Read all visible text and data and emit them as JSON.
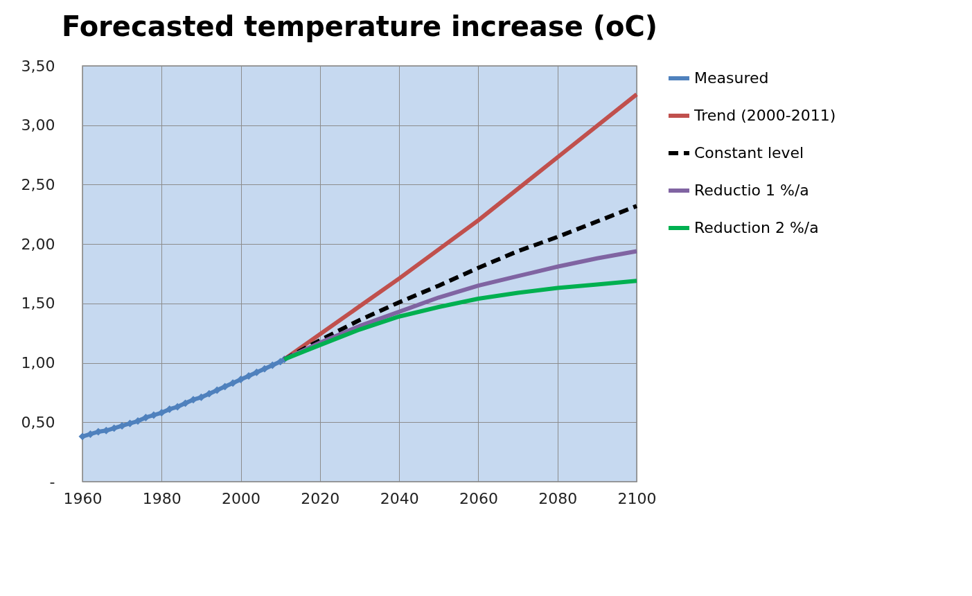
{
  "chart_data": {
    "type": "line",
    "title": "Forecasted temperature increase (oC)",
    "xlim": [
      1960,
      2100
    ],
    "xticks": [
      1960,
      1980,
      2000,
      2020,
      2040,
      2060,
      2080,
      2100
    ],
    "ylim": [
      0,
      3.5
    ],
    "yticks": [
      {
        "value": 0,
        "label": "-"
      },
      {
        "value": 0.5,
        "label": "0,50"
      },
      {
        "value": 1,
        "label": "1,00"
      },
      {
        "value": 1.5,
        "label": "1,50"
      },
      {
        "value": 2,
        "label": "2,00"
      },
      {
        "value": 2.5,
        "label": "2,50"
      },
      {
        "value": 3,
        "label": "3,00"
      },
      {
        "value": 3.5,
        "label": "3,50"
      }
    ],
    "grid": true,
    "legend": "right",
    "series": [
      {
        "name": "Measured",
        "color": "#4f81bd",
        "marker": "diamond",
        "line_style": "solid",
        "x": [
          1960,
          1962,
          1964,
          1966,
          1968,
          1970,
          1972,
          1974,
          1976,
          1978,
          1980,
          1982,
          1984,
          1986,
          1988,
          1990,
          1992,
          1994,
          1996,
          1998,
          2000,
          2002,
          2004,
          2006,
          2008,
          2010,
          2011
        ],
        "values": [
          0.38,
          0.4,
          0.42,
          0.43,
          0.45,
          0.47,
          0.49,
          0.51,
          0.54,
          0.56,
          0.58,
          0.61,
          0.63,
          0.66,
          0.69,
          0.71,
          0.74,
          0.77,
          0.8,
          0.83,
          0.86,
          0.89,
          0.92,
          0.95,
          0.98,
          1.01,
          1.03
        ]
      },
      {
        "name": "Trend (2000-2011)",
        "color": "#c0504d",
        "marker": "none",
        "line_style": "solid",
        "x": [
          2011,
          2040,
          2060,
          2080,
          2100
        ],
        "values": [
          1.03,
          1.71,
          2.2,
          2.73,
          3.26
        ]
      },
      {
        "name": "Constant level",
        "color": "#000000",
        "marker": "none",
        "line_style": "dashed",
        "x": [
          2011,
          2020,
          2030,
          2040,
          2050,
          2060,
          2070,
          2080,
          2090,
          2100
        ],
        "values": [
          1.03,
          1.19,
          1.36,
          1.51,
          1.65,
          1.8,
          1.94,
          2.06,
          2.19,
          2.32
        ]
      },
      {
        "name": "Reductio 1 %/a",
        "color": "#8064a2",
        "marker": "none",
        "line_style": "solid",
        "x": [
          2011,
          2020,
          2030,
          2040,
          2050,
          2060,
          2070,
          2080,
          2090,
          2100
        ],
        "values": [
          1.03,
          1.17,
          1.31,
          1.43,
          1.55,
          1.65,
          1.73,
          1.81,
          1.88,
          1.94
        ]
      },
      {
        "name": "Reduction 2 %/a",
        "color": "#00b050",
        "marker": "none",
        "line_style": "solid",
        "x": [
          2011,
          2020,
          2030,
          2040,
          2050,
          2060,
          2070,
          2080,
          2090,
          2100
        ],
        "values": [
          1.03,
          1.15,
          1.28,
          1.39,
          1.47,
          1.54,
          1.59,
          1.63,
          1.66,
          1.69
        ]
      }
    ]
  }
}
